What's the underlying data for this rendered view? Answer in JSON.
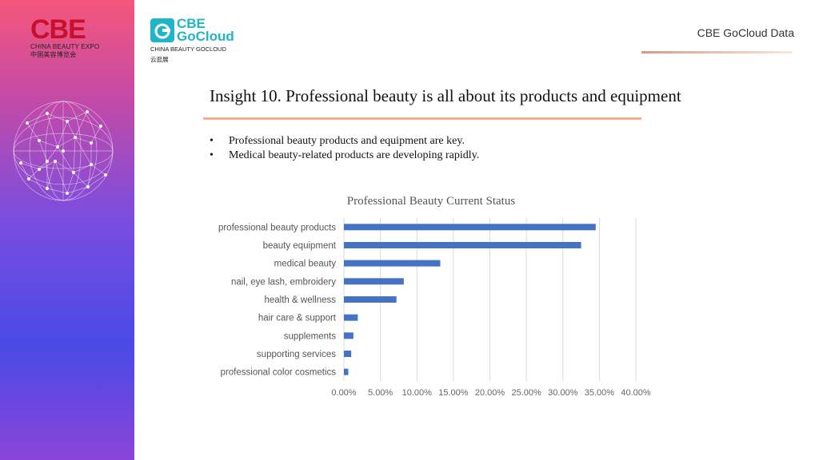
{
  "brand": {
    "cbe_logo_text": "CBE",
    "cbe_logo_en": "CHINA BEAUTY EXPO",
    "cbe_logo_cn": "中国美容博览会",
    "gocloud_logo_line1": "CBE",
    "gocloud_logo_line2": "GoCloud",
    "gocloud_logo_en": "CHINA BEAUTY GOCLOUD",
    "gocloud_logo_cn": "云逛展",
    "header_right": "CBE GoCloud Data"
  },
  "slide": {
    "title": "Insight 10. Professional beauty is all about its products and equipment",
    "bullets": [
      "Professional beauty products and equipment are key.",
      "Medical beauty-related products are developing rapidly."
    ]
  },
  "colors": {
    "bar": "#4472c4",
    "grid": "#d9d9d9",
    "title_rule": "#f2b08f"
  },
  "chart_data": {
    "type": "bar",
    "orientation": "horizontal",
    "title": "Professional Beauty Current Status",
    "categories": [
      "professional beauty products",
      "beauty equipment",
      "medical beauty",
      "nail, eye lash, embroidery",
      "health & wellness",
      "hair care & support",
      "supplements",
      "supporting services",
      "professional color cosmetics"
    ],
    "values": [
      34.5,
      32.5,
      13.2,
      8.2,
      7.2,
      1.9,
      1.3,
      1.0,
      0.6
    ],
    "xlim": [
      0,
      40
    ],
    "ticks": [
      "0.00%",
      "5.00%",
      "10.00%",
      "15.00%",
      "20.00%",
      "25.00%",
      "30.00%",
      "35.00%",
      "40.00%"
    ],
    "tick_values": [
      0,
      5,
      10,
      15,
      20,
      25,
      30,
      35,
      40
    ],
    "grid": true,
    "legend": "none"
  }
}
